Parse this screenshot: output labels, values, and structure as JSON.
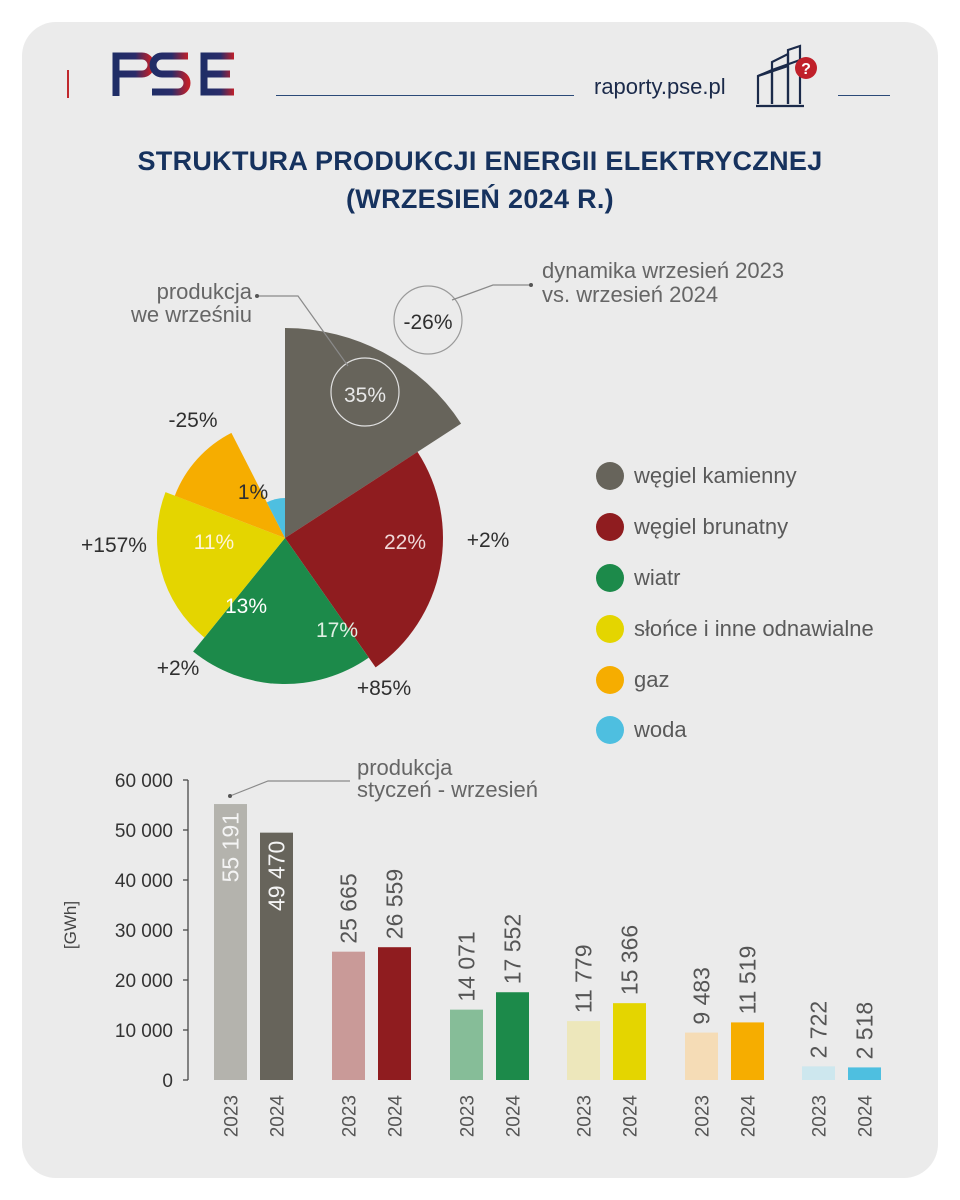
{
  "header": {
    "logo_text": "PSE",
    "site": "raporty.pse.pl",
    "title_line1": "STRUKTURA PRODUKCJI ENERGII ELEKTRYCZNEJ",
    "title_line2": "(WRZESIEŃ 2024 R.)"
  },
  "colors": {
    "wegiel_kamienny": "#67645b",
    "wegiel_brunatny": "#8f1c1f",
    "wiatr": "#1c8a4a",
    "slonce": "#e4d500",
    "gaz": "#f6ad00",
    "woda": "#4ebfe0",
    "wegiel_kamienny_2023": "#b4b3ad",
    "wegiel_brunatny_2023": "#c99a98",
    "wiatr_2023": "#86bd98",
    "slonce_2023": "#ede7bb",
    "gaz_2023": "#f5dcb6",
    "woda_2023": "#cde7ee",
    "title": "#16325e"
  },
  "annotations": {
    "pie_callout_line1": "produkcja",
    "pie_callout_line2": "we wrześniu",
    "dyn_callout_line1": "dynamika wrzesień 2023",
    "dyn_callout_line2": "vs. wrzesień 2024",
    "bar_callout_line1": "produkcja",
    "bar_callout_line2": "styczeń - wrzesień"
  },
  "legend": [
    {
      "label": "węgiel kamienny",
      "color": "#67645b"
    },
    {
      "label": "węgiel brunatny",
      "color": "#8f1c1f"
    },
    {
      "label": "wiatr",
      "color": "#1c8a4a"
    },
    {
      "label": "słońce i inne odnawialne",
      "color": "#e4d500"
    },
    {
      "label": "gaz",
      "color": "#f6ad00"
    },
    {
      "label": "woda",
      "color": "#4ebfe0"
    }
  ],
  "chart_data": [
    {
      "type": "pie",
      "subtype": "polar-area",
      "categories": [
        "węgiel kamienny",
        "węgiel brunatny",
        "wiatr",
        "słońce i inne odnawialne",
        "gaz",
        "woda"
      ],
      "values": [
        35,
        22,
        17,
        13,
        11,
        1
      ],
      "value_labels": [
        "35%",
        "22%",
        "17%",
        "13%",
        "11%",
        "1%"
      ],
      "change_labels": [
        "-26%",
        "+2%",
        "+85%",
        "+2%",
        "+157%",
        "-25%"
      ],
      "value_unit": "%"
    },
    {
      "type": "bar",
      "categories": [
        "węgiel kamienny",
        "węgiel brunatny",
        "wiatr",
        "słońce i inne odnawialne",
        "gaz",
        "woda"
      ],
      "series": [
        {
          "name": "2023",
          "values": [
            55191,
            25665,
            14071,
            11779,
            9483,
            2722
          ]
        },
        {
          "name": "2024",
          "values": [
            49470,
            26559,
            17552,
            15366,
            11519,
            2518
          ]
        }
      ],
      "value_labels": {
        "2023": [
          "55 191",
          "25 665",
          "14 071",
          "11 779",
          "9 483",
          "2 722"
        ],
        "2024": [
          "49 470",
          "26 559",
          "17 552",
          "15 366",
          "11 519",
          "2 518"
        ]
      },
      "ylabel": "[GWh]",
      "ylim": [
        0,
        60000
      ],
      "yticks": [
        0,
        10000,
        20000,
        30000,
        40000,
        50000,
        60000
      ],
      "ytick_labels": [
        "0",
        "10 000",
        "20 000",
        "30 000",
        "40 000",
        "50 000",
        "60 000"
      ],
      "grid": false
    }
  ]
}
